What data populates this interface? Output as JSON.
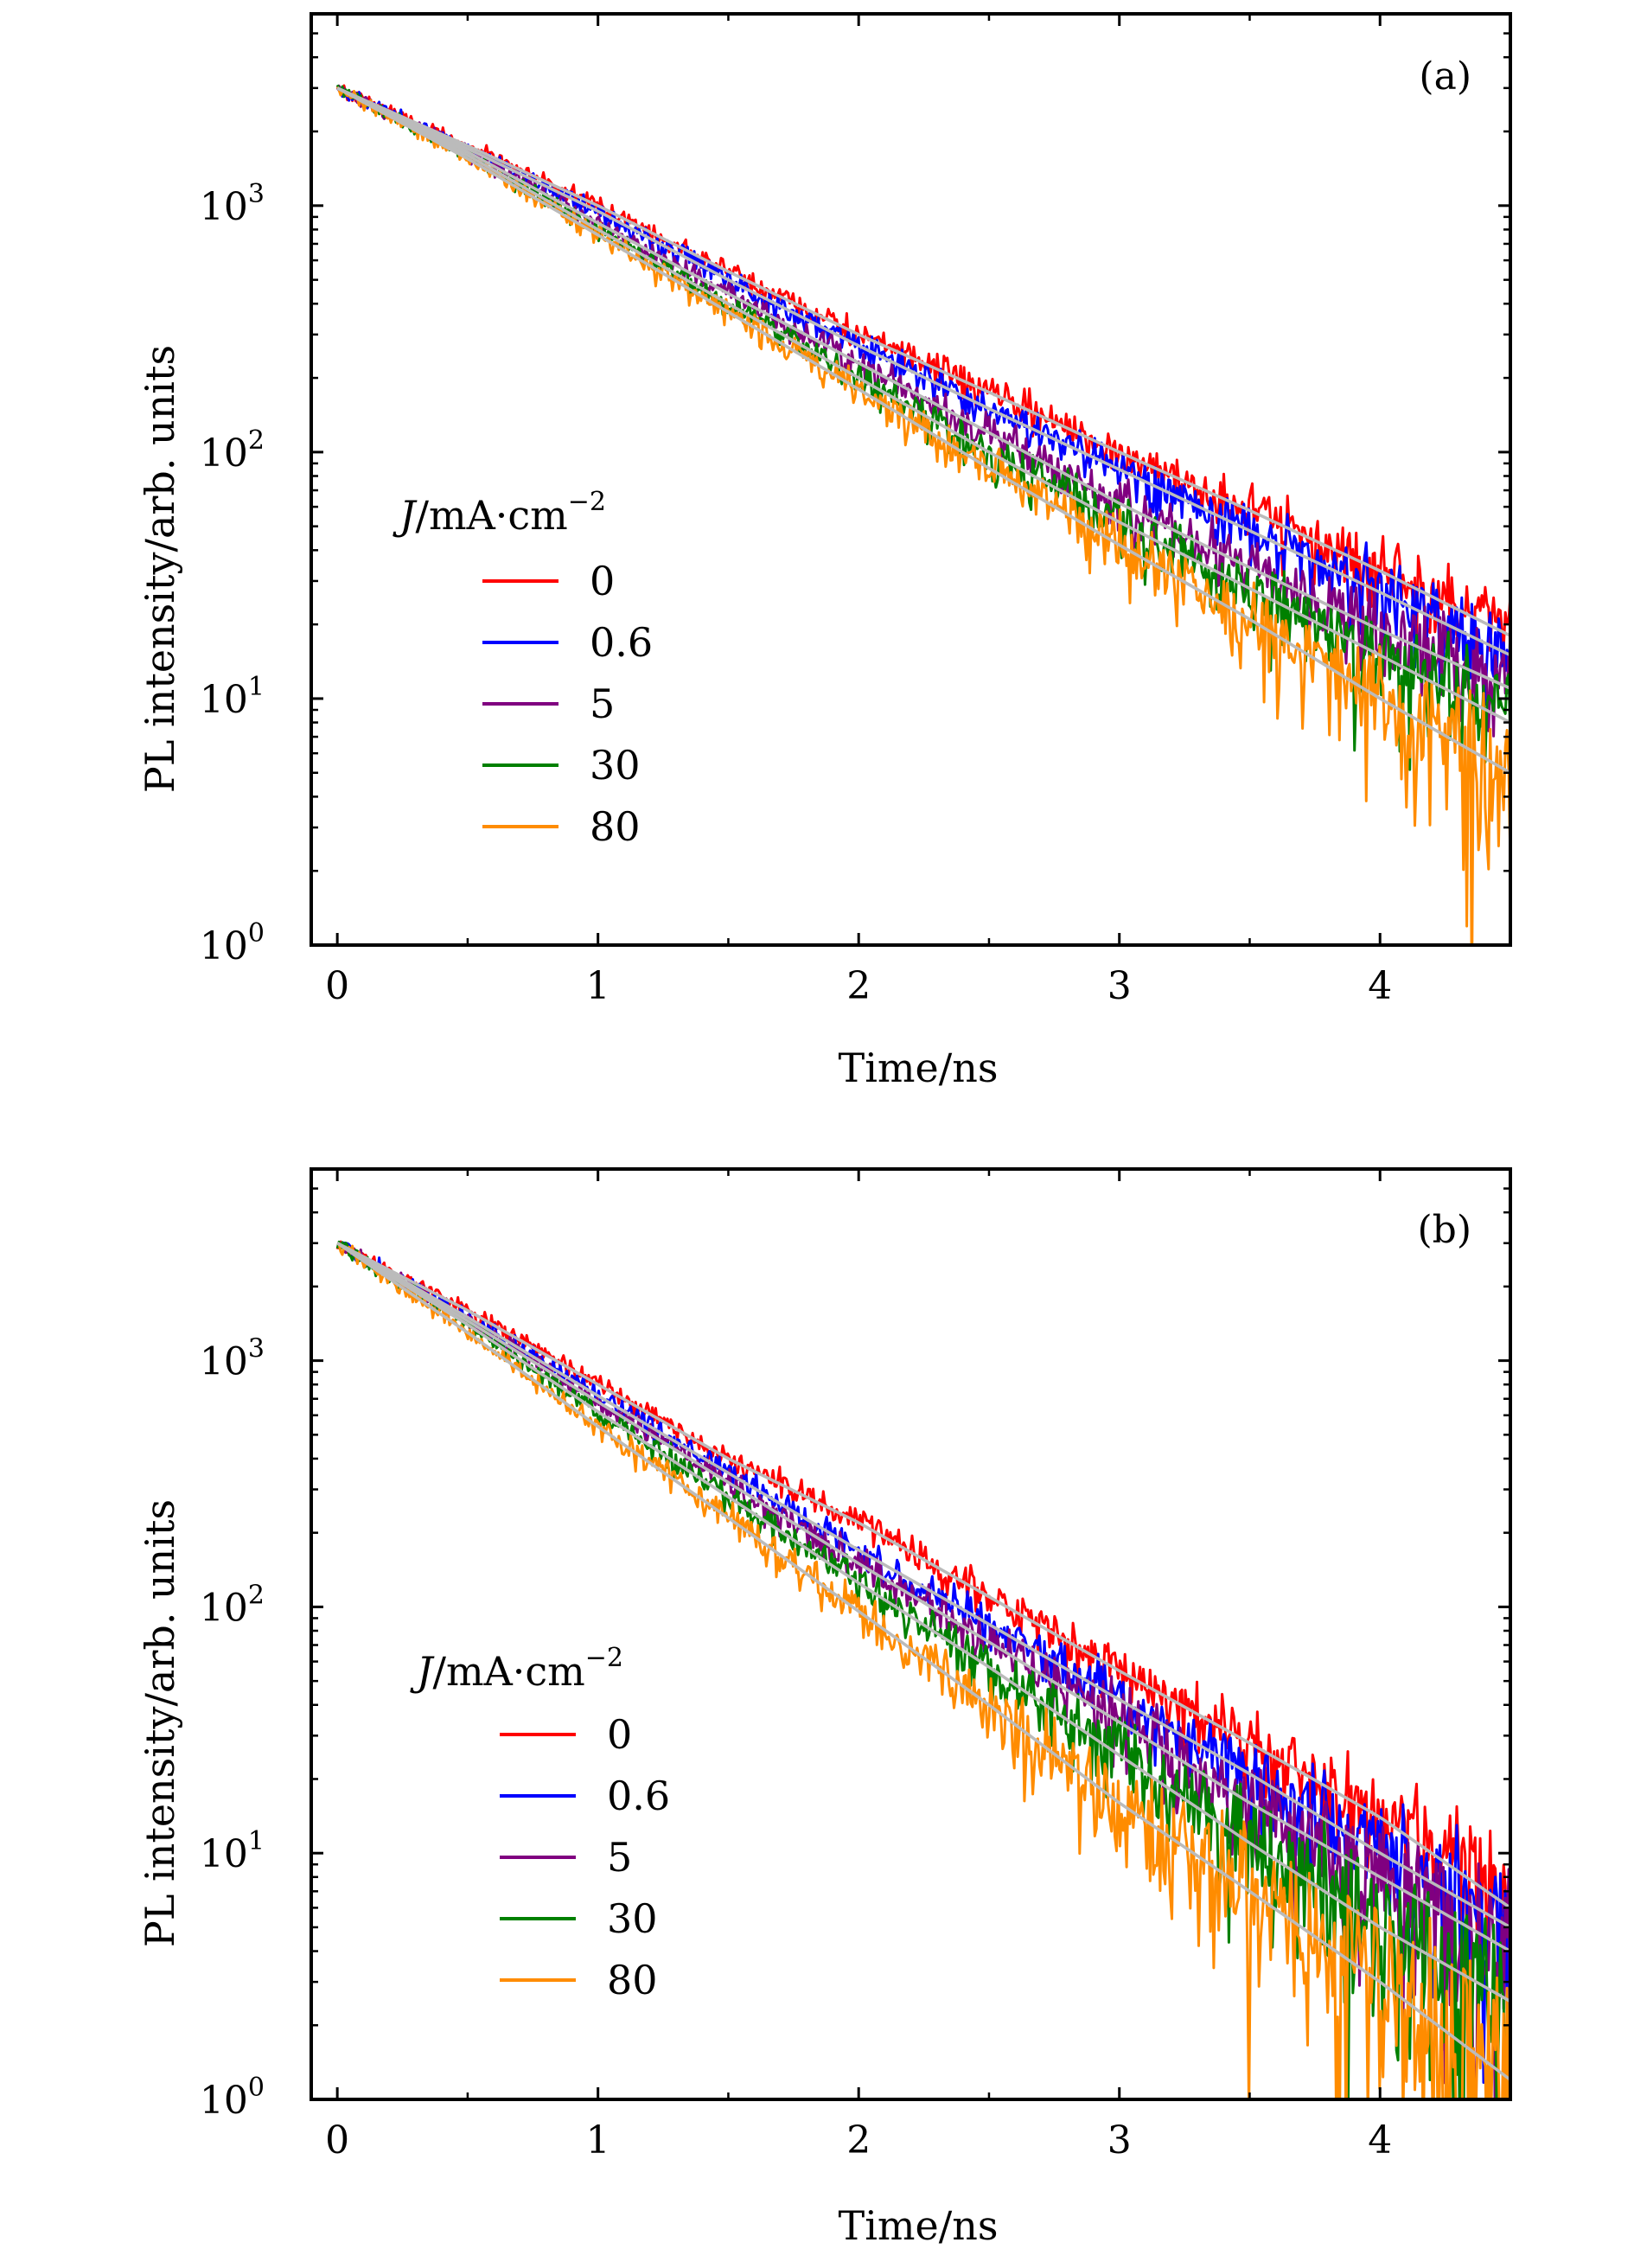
{
  "chart_data": [
    {
      "type": "line",
      "panel_label": "(a)",
      "xlabel": "Time/ns",
      "ylabel": "PL intensity/arb. units",
      "xlim": [
        -0.1,
        4.5
      ],
      "ylim": [
        1,
        6000
      ],
      "yscale": "log",
      "x_ticks": [
        "0",
        "1",
        "2",
        "3",
        "4"
      ],
      "y_ticks": [
        {
          "base": "10",
          "exp": "0"
        },
        {
          "base": "10",
          "exp": "1"
        },
        {
          "base": "10",
          "exp": "2"
        },
        {
          "base": "10",
          "exp": "3"
        }
      ],
      "legend": {
        "title_var": "J",
        "title_unit": "/mA·cm",
        "title_exp": "−2",
        "placement": "center-left"
      },
      "fit_color": "#bbbbbb",
      "series": [
        {
          "name": "0",
          "color": "#ff0000",
          "x": [
            0,
            0.5,
            1,
            1.5,
            2,
            2.5,
            3,
            3.5,
            4,
            4.5
          ],
          "values": [
            3000,
            1750,
            1000,
            540,
            300,
            175,
            100,
            58,
            33,
            18
          ]
        },
        {
          "name": "0.6",
          "color": "#0000ff",
          "x": [
            0,
            0.5,
            1,
            1.5,
            2,
            2.5,
            3,
            3.5,
            4,
            4.5
          ],
          "values": [
            3000,
            1700,
            950,
            500,
            270,
            150,
            85,
            48,
            27,
            15
          ]
        },
        {
          "name": "5",
          "color": "#800080",
          "x": [
            0,
            0.5,
            1,
            1.5,
            2,
            2.5,
            3,
            3.5,
            4,
            4.5
          ],
          "values": [
            3000,
            1650,
            850,
            440,
            230,
            120,
            62,
            34,
            19,
            11
          ]
        },
        {
          "name": "30",
          "color": "#008000",
          "x": [
            0,
            0.5,
            1,
            1.5,
            2,
            2.5,
            3,
            3.5,
            4,
            4.5
          ],
          "values": [
            3000,
            1600,
            800,
            400,
            200,
            100,
            52,
            28,
            15,
            8
          ]
        },
        {
          "name": "80",
          "color": "#ff8c00",
          "x": [
            0,
            0.5,
            1,
            1.5,
            2,
            2.5,
            3,
            3.5,
            4,
            4.5
          ],
          "values": [
            3000,
            1550,
            760,
            370,
            180,
            86,
            42,
            21,
            10,
            5
          ]
        }
      ]
    },
    {
      "type": "line",
      "panel_label": "(b)",
      "xlabel": "Time/ns",
      "ylabel": "PL intensity/arb. units",
      "xlim": [
        -0.1,
        4.5
      ],
      "ylim": [
        1,
        6000
      ],
      "yscale": "log",
      "x_ticks": [
        "0",
        "1",
        "2",
        "3",
        "4"
      ],
      "y_ticks": [
        {
          "base": "10",
          "exp": "0"
        },
        {
          "base": "10",
          "exp": "1"
        },
        {
          "base": "10",
          "exp": "2"
        },
        {
          "base": "10",
          "exp": "3"
        }
      ],
      "legend": {
        "title_var": "J",
        "title_unit": "/mA·cm",
        "title_exp": "−2",
        "placement": "center-left"
      },
      "fit_color": "#bbbbbb",
      "series": [
        {
          "name": "0",
          "color": "#ff0000",
          "x": [
            0,
            0.5,
            1,
            1.5,
            2,
            2.5,
            3,
            3.5,
            4,
            4.5
          ],
          "values": [
            3000,
            1600,
            800,
            400,
            220,
            110,
            55,
            28,
            14,
            6
          ]
        },
        {
          "name": "0.6",
          "color": "#0000ff",
          "x": [
            0,
            0.5,
            1,
            1.5,
            2,
            2.5,
            3,
            3.5,
            4,
            4.5
          ],
          "values": [
            3000,
            1500,
            720,
            350,
            170,
            85,
            42,
            21,
            10,
            5
          ]
        },
        {
          "name": "5",
          "color": "#800080",
          "x": [
            0,
            0.5,
            1,
            1.5,
            2,
            2.5,
            3,
            3.5,
            4,
            4.5
          ],
          "values": [
            3000,
            1450,
            680,
            320,
            150,
            72,
            34,
            16,
            8,
            4
          ]
        },
        {
          "name": "30",
          "color": "#008000",
          "x": [
            0,
            0.5,
            1,
            1.5,
            2,
            2.5,
            3,
            3.5,
            4,
            4.5
          ],
          "values": [
            3000,
            1400,
            620,
            280,
            125,
            57,
            25,
            11,
            5,
            2.5
          ]
        },
        {
          "name": "80",
          "color": "#ff8c00",
          "x": [
            0,
            0.5,
            1,
            1.5,
            2,
            2.5,
            3,
            3.5,
            4,
            4.5
          ],
          "values": [
            3000,
            1300,
            540,
            230,
            96,
            40,
            16,
            7,
            3,
            1.2
          ]
        }
      ]
    }
  ]
}
